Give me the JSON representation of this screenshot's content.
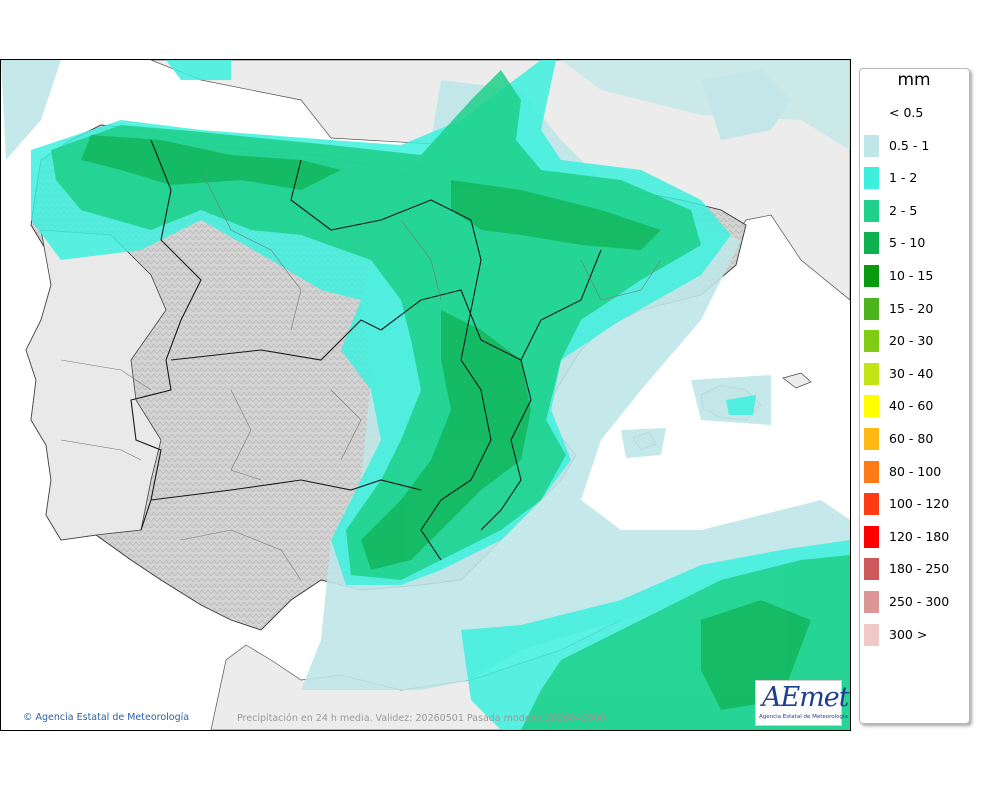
{
  "map": {
    "credit": "Agencia Estatal de Meteorología",
    "footer": "Precipitación en 24 h media. Validez: 20260501 Pasada modelo: 2026042900"
  },
  "logo": {
    "word": "AEmet",
    "subtitle": "Agencia Estatal de Meteorología"
  },
  "legend": {
    "title": "mm",
    "items": [
      {
        "label": "< 0.5",
        "color": "#ffffff"
      },
      {
        "label": "0.5 - 1",
        "color": "#bfe6e8"
      },
      {
        "label": "1 - 2",
        "color": "#3df0de"
      },
      {
        "label": "2 - 5",
        "color": "#1fd08a"
      },
      {
        "label": "5 - 10",
        "color": "#0fb050"
      },
      {
        "label": "10 - 15",
        "color": "#0a9a10"
      },
      {
        "label": "15 - 20",
        "color": "#4cb41c"
      },
      {
        "label": "20 - 30",
        "color": "#80cc14"
      },
      {
        "label": "30 - 40",
        "color": "#c2e414"
      },
      {
        "label": "40 - 60",
        "color": "#ffff00"
      },
      {
        "label": "60 - 80",
        "color": "#ffb914"
      },
      {
        "label": "80 - 100",
        "color": "#ff7a14"
      },
      {
        "label": "100 - 120",
        "color": "#ff3c14"
      },
      {
        "label": "120 - 180",
        "color": "#ff0000"
      },
      {
        "label": "180 - 250",
        "color": "#cd5a5a"
      },
      {
        "label": "250 - 300",
        "color": "#dc9696"
      },
      {
        "label": "300 >",
        "color": "#f0c8c8"
      }
    ]
  }
}
